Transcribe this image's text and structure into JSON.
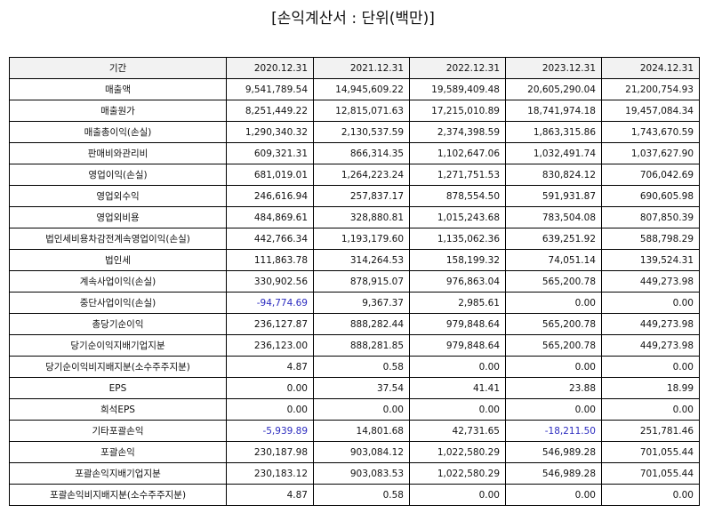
{
  "title": "[손익계산서 : 단위(백만)]",
  "header": [
    "기간",
    "2020.12.31",
    "2021.12.31",
    "2022.12.31",
    "2023.12.31",
    "2024.12.31"
  ],
  "rows": [
    {
      "label": "매출액",
      "values": [
        "9,541,789.54",
        "14,945,609.22",
        "19,589,409.48",
        "20,605,290.04",
        "21,200,754.93"
      ]
    },
    {
      "label": "매출원가",
      "values": [
        "8,251,449.22",
        "12,815,071.63",
        "17,215,010.89",
        "18,741,974.18",
        "19,457,084.34"
      ]
    },
    {
      "label": "매출총이익(손실)",
      "values": [
        "1,290,340.32",
        "2,130,537.59",
        "2,374,398.59",
        "1,863,315.86",
        "1,743,670.59"
      ]
    },
    {
      "label": "판매비와관리비",
      "values": [
        "609,321.31",
        "866,314.35",
        "1,102,647.06",
        "1,032,491.74",
        "1,037,627.90"
      ]
    },
    {
      "label": "영업이익(손실)",
      "values": [
        "681,019.01",
        "1,264,223.24",
        "1,271,751.53",
        "830,824.12",
        "706,042.69"
      ]
    },
    {
      "label": "영업외수익",
      "values": [
        "246,616.94",
        "257,837.17",
        "878,554.50",
        "591,931.87",
        "690,605.98"
      ]
    },
    {
      "label": "영업외비용",
      "values": [
        "484,869.61",
        "328,880.81",
        "1,015,243.68",
        "783,504.08",
        "807,850.39"
      ]
    },
    {
      "label": "법인세비용차감전계속영업이익(손실)",
      "values": [
        "442,766.34",
        "1,193,179.60",
        "1,135,062.36",
        "639,251.92",
        "588,798.29"
      ]
    },
    {
      "label": "법인세",
      "values": [
        "111,863.78",
        "314,264.53",
        "158,199.32",
        "74,051.14",
        "139,524.31"
      ]
    },
    {
      "label": "계속사업이익(손실)",
      "values": [
        "330,902.56",
        "878,915.07",
        "976,863.04",
        "565,200.78",
        "449,273.98"
      ]
    },
    {
      "label": "중단사업이익(손실)",
      "values": [
        "-94,774.69",
        "9,367.37",
        "2,985.61",
        "0.00",
        "0.00"
      ]
    },
    {
      "label": "총당기순이익",
      "values": [
        "236,127.87",
        "888,282.44",
        "979,848.64",
        "565,200.78",
        "449,273.98"
      ]
    },
    {
      "label": "당기순이익지배기업지분",
      "values": [
        "236,123.00",
        "888,281.85",
        "979,848.64",
        "565,200.78",
        "449,273.98"
      ]
    },
    {
      "label": "당기순이익비지배지분(소수주주지분)",
      "values": [
        "4.87",
        "0.58",
        "0.00",
        "0.00",
        "0.00"
      ]
    },
    {
      "label": "EPS",
      "values": [
        "0.00",
        "37.54",
        "41.41",
        "23.88",
        "18.99"
      ]
    },
    {
      "label": "희석EPS",
      "values": [
        "0.00",
        "0.00",
        "0.00",
        "0.00",
        "0.00"
      ]
    },
    {
      "label": "기타포괄손익",
      "values": [
        "-5,939.89",
        "14,801.68",
        "42,731.65",
        "-18,211.50",
        "251,781.46"
      ]
    },
    {
      "label": "포괄손익",
      "values": [
        "230,187.98",
        "903,084.12",
        "1,022,580.29",
        "546,989.28",
        "701,055.44"
      ]
    },
    {
      "label": "포괄손익지배기업지분",
      "values": [
        "230,183.12",
        "903,083.53",
        "1,022,580.29",
        "546,989.28",
        "701,055.44"
      ]
    },
    {
      "label": "포괄손익비지배지분(소수주주지분)",
      "values": [
        "4.87",
        "0.58",
        "0.00",
        "0.00",
        "0.00"
      ]
    }
  ],
  "colors": {
    "negative": "#2b2bbf",
    "header_bg": "#f2f2f2",
    "border": "#000000"
  }
}
